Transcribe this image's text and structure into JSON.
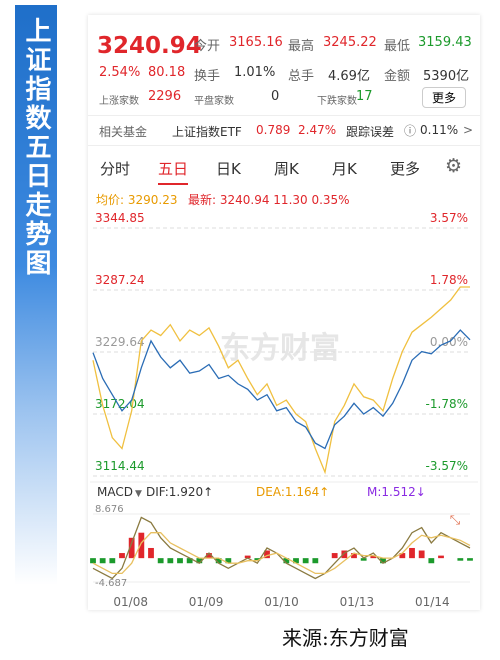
{
  "banner": "上证指数五日走势图",
  "header": {
    "price": "3240.94",
    "open_label": "今开",
    "open": "3165.16",
    "high_label": "最高",
    "high": "3245.22",
    "low_label": "最低",
    "low": "3159.43",
    "change_pct": "2.54%",
    "change": "80.18",
    "turnover_label": "换手",
    "turnover": "1.01%",
    "volume_label": "总手",
    "volume": "4.69亿",
    "amount_label": "金额",
    "amount": "5390亿",
    "up_label": "上涨家数",
    "up": "2296",
    "flat_label": "平盘家数",
    "flat": "0",
    "down_label": "下跌家数",
    "down": "17",
    "more": "更多"
  },
  "fund": {
    "label": "相关基金",
    "name": "上证指数ETF",
    "price": "0.789",
    "pct": "2.47%",
    "error_label": "跟踪误差",
    "error": "0.11%",
    "arrow": ">"
  },
  "tabs": [
    "分时",
    "五日",
    "日K",
    "周K",
    "月K",
    "更多"
  ],
  "legend": {
    "avg": "均价: 3290.23",
    "latest": "最新: 3240.94 11.30 0.35%"
  },
  "watermark": "东方财富",
  "chart": {
    "type": "line",
    "ylim": [
      3114.44,
      3344.85
    ],
    "yticks": [
      3344.85,
      3287.24,
      3229.64,
      3172.04,
      3114.44
    ],
    "y2lim": [
      -3.57,
      3.57
    ],
    "y2ticks": [
      {
        "value": 3.57,
        "label": "3.57%"
      },
      {
        "value": 1.78,
        "label": "1.78%"
      },
      {
        "value": 0,
        "label": "0.00%"
      },
      {
        "value": -1.78,
        "label": "-1.78%"
      },
      {
        "value": -3.57,
        "label": "-3.57%"
      }
    ],
    "series": [
      {
        "name": "最新",
        "color": "#2a6cb5",
        "values": [
          3229,
          3205,
          3190,
          3175,
          3185,
          3215,
          3240,
          3225,
          3215,
          3222,
          3210,
          3212,
          3218,
          3205,
          3208,
          3200,
          3195,
          3185,
          3190,
          3175,
          3178,
          3165,
          3160,
          3145,
          3140,
          3162,
          3170,
          3182,
          3172,
          3178,
          3170,
          3182,
          3200,
          3222,
          3230,
          3228,
          3236,
          3240,
          3250,
          3241
        ]
      },
      {
        "name": "均价",
        "color": "#f0c040",
        "values": [
          3222,
          3180,
          3150,
          3140,
          3175,
          3240,
          3250,
          3245,
          3255,
          3240,
          3250,
          3245,
          3252,
          3235,
          3215,
          3222,
          3205,
          3190,
          3200,
          3180,
          3185,
          3172,
          3165,
          3140,
          3118,
          3165,
          3180,
          3200,
          3188,
          3185,
          3175,
          3205,
          3230,
          3248,
          3255,
          3262,
          3270,
          3278,
          3290,
          3290
        ]
      }
    ],
    "x_labels": [
      "01/08",
      "01/09",
      "01/10",
      "01/13",
      "01/14"
    ]
  },
  "macd": {
    "title": "MACD",
    "dif": "DIF:1.920↑",
    "dea": "DEA:1.164↑",
    "m": "M:1.512↓",
    "ylim": [
      -4.687,
      8.676
    ],
    "yticks": [
      8.676,
      -4.687
    ],
    "hist": [
      -1,
      -1,
      -1,
      1,
      4,
      5,
      2,
      -1,
      -1,
      -1,
      -1,
      -1,
      1,
      -1,
      -1,
      0,
      0.5,
      -0.5,
      1.5,
      0,
      -1,
      -1,
      -1,
      -1,
      0,
      1,
      1.5,
      1,
      -0.5,
      0.5,
      -1,
      0,
      1,
      2,
      1.5,
      -1,
      0.5,
      0,
      -0.5,
      -0.5
    ],
    "dif_values": [
      -2,
      -3,
      -4,
      -2,
      3,
      8,
      7,
      4,
      2,
      1,
      0,
      -1,
      1,
      -1,
      -2,
      -1,
      0,
      -1,
      2,
      1,
      -1,
      -2,
      -3,
      -4,
      -3,
      -1,
      1,
      2,
      0,
      1,
      -1,
      0,
      2,
      5,
      6,
      3,
      5,
      4,
      3,
      2
    ],
    "dea_values": [
      -1,
      -2,
      -3,
      -3,
      -1,
      3,
      5,
      5,
      3,
      2,
      1,
      0,
      0,
      0,
      -1,
      -1,
      -0.5,
      -0.5,
      0.5,
      1,
      0,
      -1,
      -2,
      -3,
      -3,
      -2,
      -0.5,
      1,
      0.5,
      0.5,
      0,
      0,
      1,
      3,
      4.5,
      4,
      4.5,
      4,
      3.5,
      2.5
    ]
  },
  "source": "来源:东方财富"
}
